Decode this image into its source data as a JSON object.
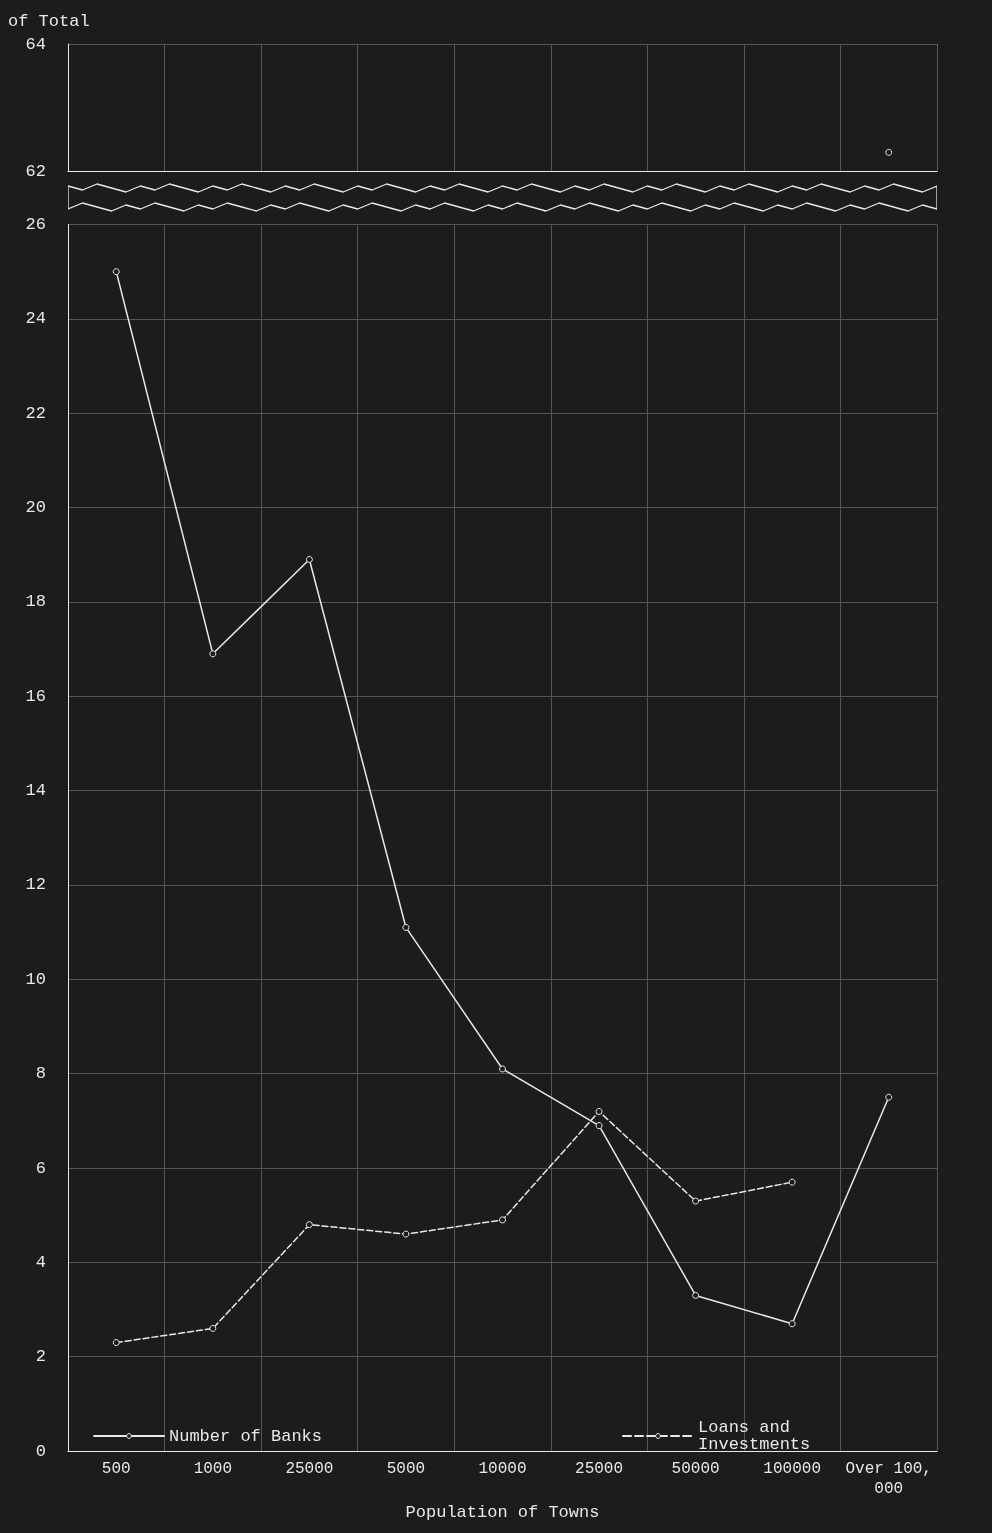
{
  "chart_data": [
    {
      "type": "line",
      "ylabel": "of Total",
      "categories": [
        "500",
        "1000",
        "25000",
        "5000",
        "10000",
        "25000",
        "50000",
        "100000",
        "Over 100,000"
      ],
      "series": [
        {
          "color": "#e8e8e8",
          "line_style": "dashed",
          "values": [
            null,
            null,
            null,
            null,
            null,
            null,
            null,
            null,
            62.3
          ]
        }
      ],
      "ylim": [
        62,
        64
      ],
      "yticks": [
        62,
        64
      ],
      "tick_labels": "y",
      "grid": true,
      "marker": "circle"
    },
    {
      "type": "line",
      "xlabel": "Population of Towns",
      "categories": [
        "500",
        "1000",
        "25000",
        "5000",
        "10000",
        "25000",
        "50000",
        "100000",
        "Over 100,000"
      ],
      "series": [
        {
          "name": "Number of Banks",
          "color": "#e8e8e8",
          "line_style": "solid",
          "values": [
            25.0,
            16.9,
            18.9,
            11.1,
            8.1,
            6.9,
            3.3,
            2.7,
            7.5
          ]
        },
        {
          "name": "Loans and Investments",
          "color": "#e8e8e8",
          "line_style": "dashed",
          "values": [
            2.3,
            2.6,
            4.8,
            4.6,
            4.9,
            7.2,
            5.3,
            5.7,
            null
          ]
        }
      ],
      "ylim": [
        0,
        26
      ],
      "yticks": [
        0,
        2,
        4,
        6,
        8,
        10,
        12,
        14,
        16,
        18,
        20,
        22,
        24,
        26
      ],
      "grid": true,
      "legend": "bottom",
      "marker": "circle"
    }
  ]
}
